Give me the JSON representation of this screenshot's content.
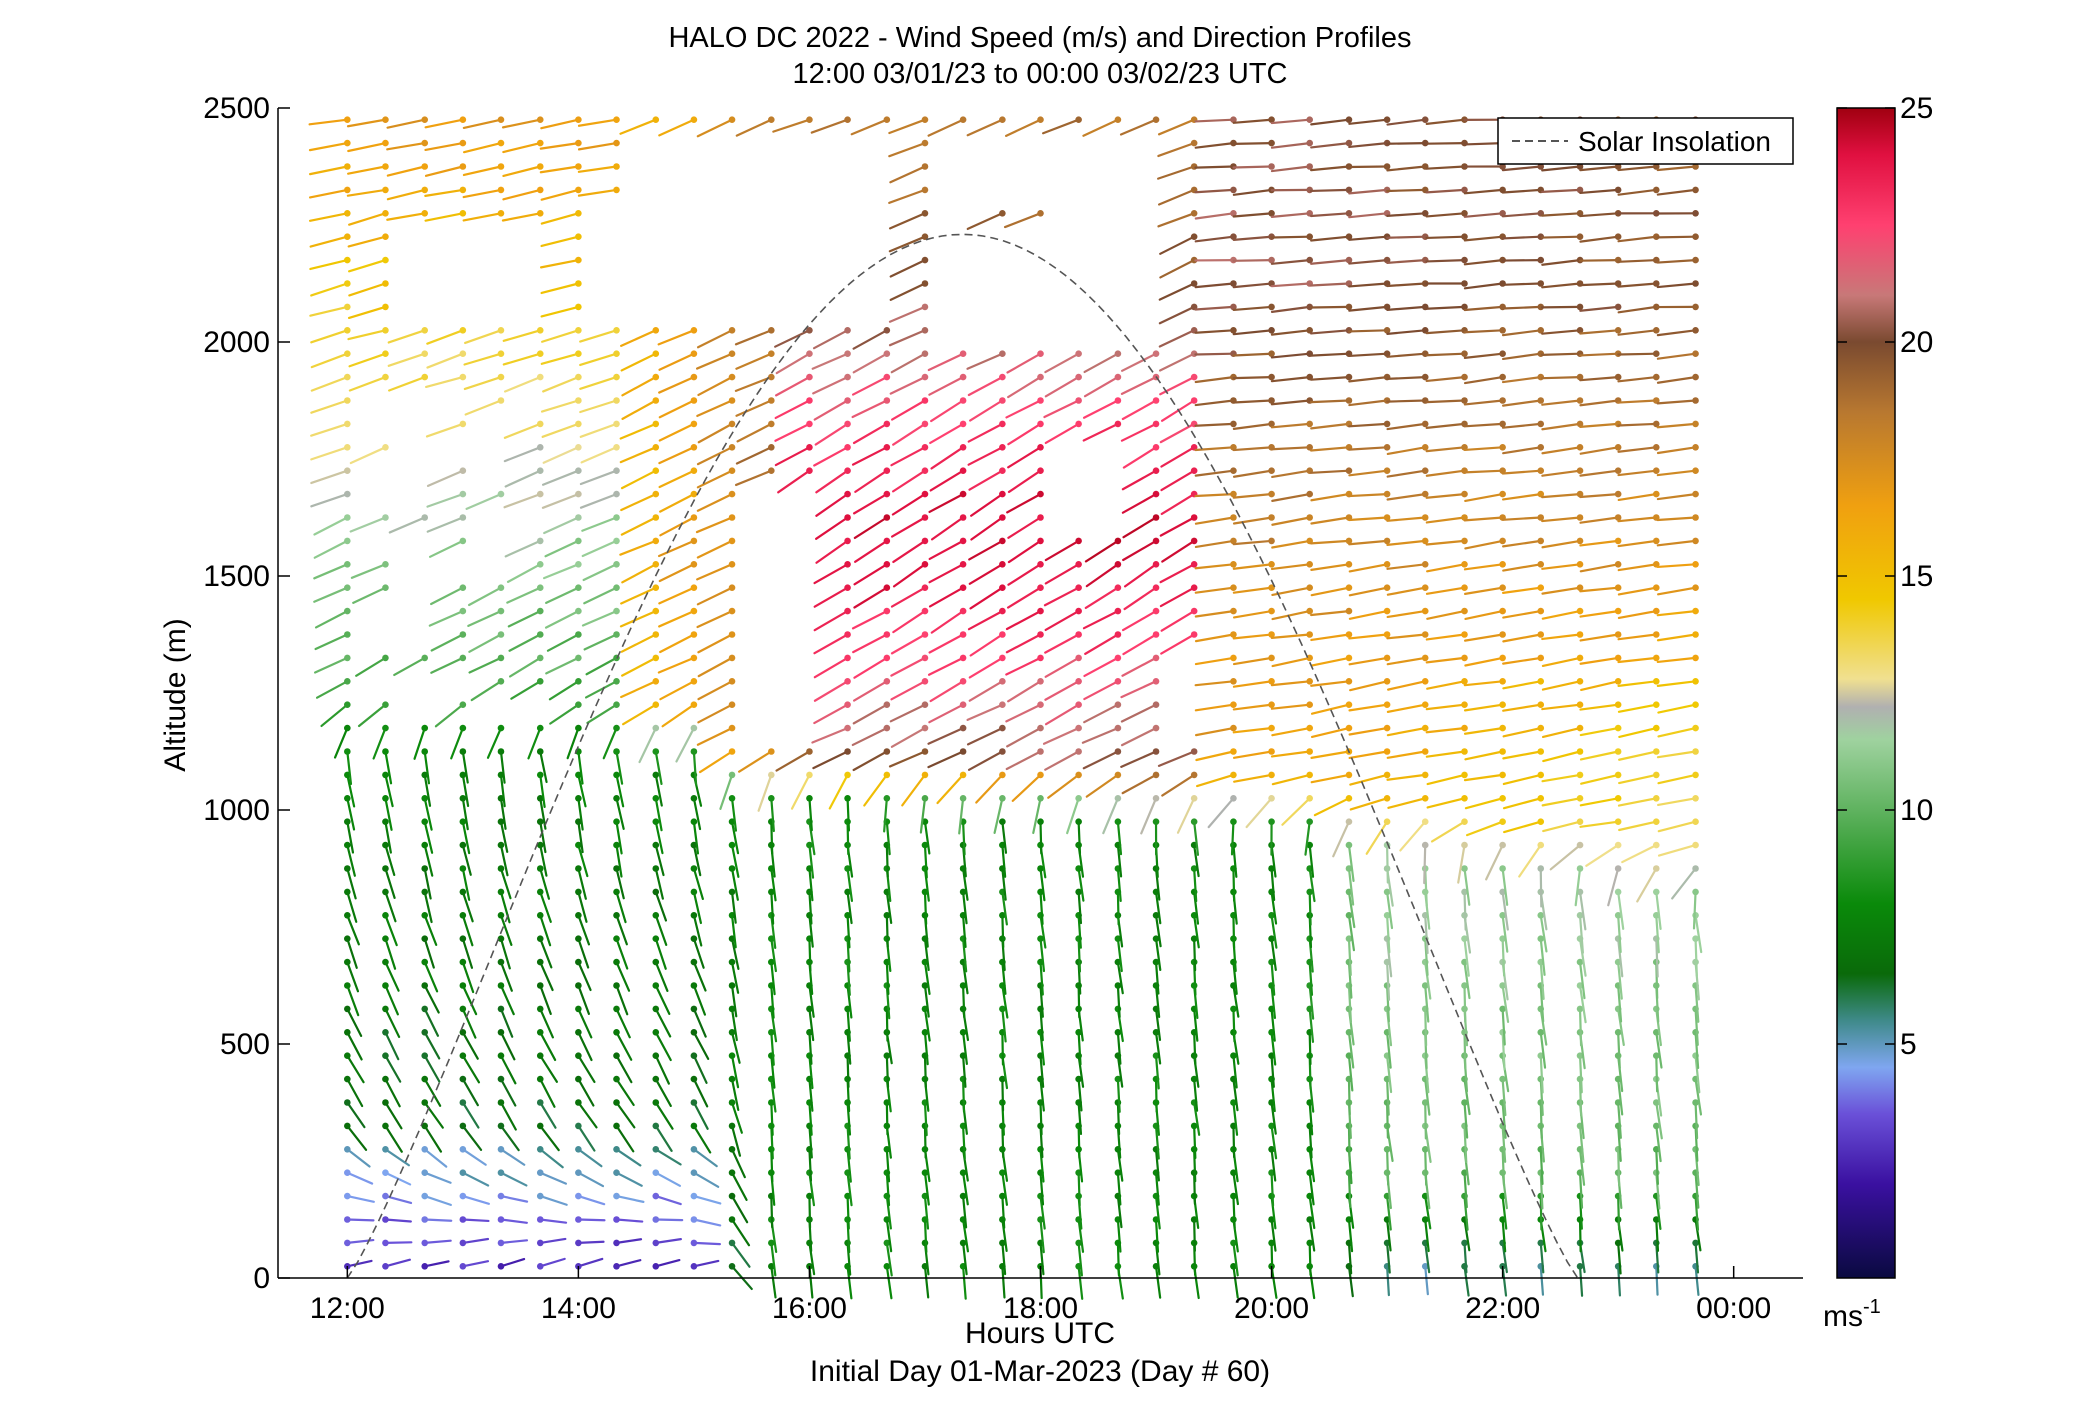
{
  "chart_data": {
    "type": "wind-barb-profile",
    "title": "HALO DC 2022 - Wind Speed (m/s) and Direction Profiles",
    "subtitle": "12:00 03/01/23 to 00:00 03/02/23  UTC",
    "xlabel": "Hours UTC",
    "xlabel_note": "Initial Day 01-Mar-2023 (Day # 60)",
    "ylabel": "Altitude (m)",
    "xlim": [
      11.4,
      24.6
    ],
    "ylim": [
      0,
      2500
    ],
    "x_ticks": [
      {
        "value": 12,
        "label": "12:00"
      },
      {
        "value": 14,
        "label": "14:00"
      },
      {
        "value": 16,
        "label": "16:00"
      },
      {
        "value": 18,
        "label": "18:00"
      },
      {
        "value": 20,
        "label": "20:00"
      },
      {
        "value": 22,
        "label": "22:00"
      },
      {
        "value": 24,
        "label": "00:00"
      }
    ],
    "y_ticks": [
      0,
      500,
      1000,
      1500,
      2000,
      2500
    ],
    "legend": {
      "placement": "top-right",
      "entries": [
        {
          "label": "Solar Insolation",
          "style": "dashed",
          "color": "#555555"
        }
      ]
    },
    "solar_insolation_curve": {
      "start_hour": 12.0,
      "peak_hour": 17.35,
      "end_hour": 22.65,
      "peak_altitude": 2230
    },
    "colorbar": {
      "min": 0,
      "max": 25,
      "ticks": [
        5,
        10,
        15,
        20,
        25
      ],
      "unit_label": "ms-1",
      "stops": [
        {
          "v": 0.0,
          "c": "#0a0a40"
        },
        {
          "v": 2.0,
          "c": "#3a10a0"
        },
        {
          "v": 3.5,
          "c": "#6a50d8"
        },
        {
          "v": 4.5,
          "c": "#7fa6f0"
        },
        {
          "v": 5.5,
          "c": "#3f8a8a"
        },
        {
          "v": 6.5,
          "c": "#0a6a0a"
        },
        {
          "v": 8.0,
          "c": "#0a8a0a"
        },
        {
          "v": 9.5,
          "c": "#4aa84a"
        },
        {
          "v": 11.5,
          "c": "#9fd29f"
        },
        {
          "v": 12.2,
          "c": "#b0b0b0"
        },
        {
          "v": 12.8,
          "c": "#f0e090"
        },
        {
          "v": 14.5,
          "c": "#f0c800"
        },
        {
          "v": 16.5,
          "c": "#f0a010"
        },
        {
          "v": 18.5,
          "c": "#b87830"
        },
        {
          "v": 20.0,
          "c": "#7a4a30"
        },
        {
          "v": 21.0,
          "c": "#c87878"
        },
        {
          "v": 22.5,
          "c": "#ff4070"
        },
        {
          "v": 24.0,
          "c": "#e01040"
        },
        {
          "v": 25.0,
          "c": "#a00010"
        }
      ]
    },
    "profile_times_hours": [
      12.0,
      12.33,
      12.67,
      13.0,
      13.33,
      13.67,
      14.0,
      14.33,
      14.67,
      15.0,
      15.33,
      15.67,
      16.0,
      16.33,
      16.67,
      17.0,
      17.33,
      17.67,
      18.0,
      18.33,
      18.67,
      19.0,
      19.33,
      19.67,
      20.0,
      20.33,
      20.67,
      21.0,
      21.33,
      21.67,
      22.0,
      22.33,
      22.67,
      23.0,
      23.33,
      23.67
    ],
    "altitude_levels_m": [
      25,
      75,
      125,
      175,
      225,
      275,
      325,
      375,
      425,
      475,
      525,
      575,
      625,
      675,
      725,
      775,
      825,
      875,
      925,
      975,
      1025,
      1075,
      1125,
      1175,
      1225,
      1275,
      1325,
      1375,
      1425,
      1475,
      1525,
      1575,
      1625,
      1675,
      1725,
      1775,
      1825,
      1875,
      1925,
      1975,
      2025,
      2075,
      2125,
      2175,
      2225,
      2275,
      2325,
      2375,
      2425,
      2475
    ],
    "regimes": [
      {
        "alt_range_m": [
          0,
          300
        ],
        "hours": [
          12.0,
          15.3
        ],
        "speed_ms": [
          2,
          5
        ],
        "direction": "easterly-to-northeasterly, veering with height"
      },
      {
        "alt_range_m": [
          300,
          1150
        ],
        "hours": [
          12.0,
          15.3
        ],
        "speed_ms": [
          5,
          9
        ],
        "direction": "north-northwesterly"
      },
      {
        "alt_range_m": [
          0,
          1000
        ],
        "hours": [
          15.3,
          20.5
        ],
        "speed_ms": [
          7,
          10
        ],
        "direction": "northerly"
      },
      {
        "alt_range_m": [
          0,
          900
        ],
        "hours": [
          20.5,
          23.7
        ],
        "speed_ms": [
          8,
          12
        ],
        "direction": "northerly to north-northeasterly, weaker near surface"
      },
      {
        "alt_range_m": [
          1200,
          2500
        ],
        "hours": [
          12.0,
          14.0
        ],
        "speed_ms": [
          8,
          17
        ],
        "direction": "northwesterly to westerly"
      },
      {
        "alt_range_m": [
          1100,
          2100
        ],
        "hours": [
          15.7,
          19.5
        ],
        "speed_ms": [
          20,
          25
        ],
        "direction": "westerly to west-southwesterly"
      },
      {
        "alt_range_m": [
          900,
          2500
        ],
        "hours": [
          19.5,
          23.7
        ],
        "speed_ms": [
          14,
          20
        ],
        "direction": "westerly"
      }
    ]
  }
}
